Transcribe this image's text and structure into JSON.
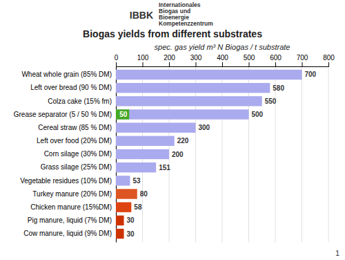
{
  "chart_data": {
    "type": "bar",
    "orientation": "horizontal",
    "title": "Biogas yields from different substrates",
    "xlabel": "spec. gas yield m³ N Biogas / t substrate",
    "categories": [
      "Cow manure, liquid (9% DM)",
      "Pig manure, liquid (7% DM)",
      "Chicken manure (15%DM)",
      "Turkey manure (20% DM)",
      "Vegetable residues (10% DM)",
      "Grass silage (25% DM)",
      "Corn silage (30% DM)",
      "Left over food (20% DM)",
      "Cereal straw (85 % DM)",
      "Grease separator (5 / 50 % DM)",
      "Colza cake (15% fm)",
      "Left over bread (90 % DM)",
      "Wheat whole grain (85% DM)"
    ],
    "series": [
      {
        "values": [
          30,
          30,
          58,
          80,
          53,
          151,
          200,
          220,
          300,
          500,
          550,
          580,
          700
        ],
        "colors": [
          "#cc3300",
          "#cc3300",
          "#dd4411",
          "#dd5522",
          "#aaaaee",
          "#aaaaee",
          "#aaaaee",
          "#aaaaee",
          "#aaaaee",
          "#aaaaee",
          "#aaaaee",
          "#aaaaee",
          "#aaaaee"
        ]
      },
      {
        "values": [
          null,
          null,
          null,
          null,
          null,
          null,
          null,
          null,
          null,
          50,
          null,
          null,
          null
        ],
        "color": "#44aa22"
      }
    ],
    "xlim": [
      0,
      800
    ],
    "xticks": [
      0,
      100,
      200,
      300,
      400,
      500,
      600,
      700,
      800
    ],
    "grid": true,
    "data_labels": true,
    "annotations": [
      "IBBK",
      "Internationales",
      "Biogas und",
      "Bioenergie",
      "Kompetenzzentrum",
      "1"
    ]
  }
}
